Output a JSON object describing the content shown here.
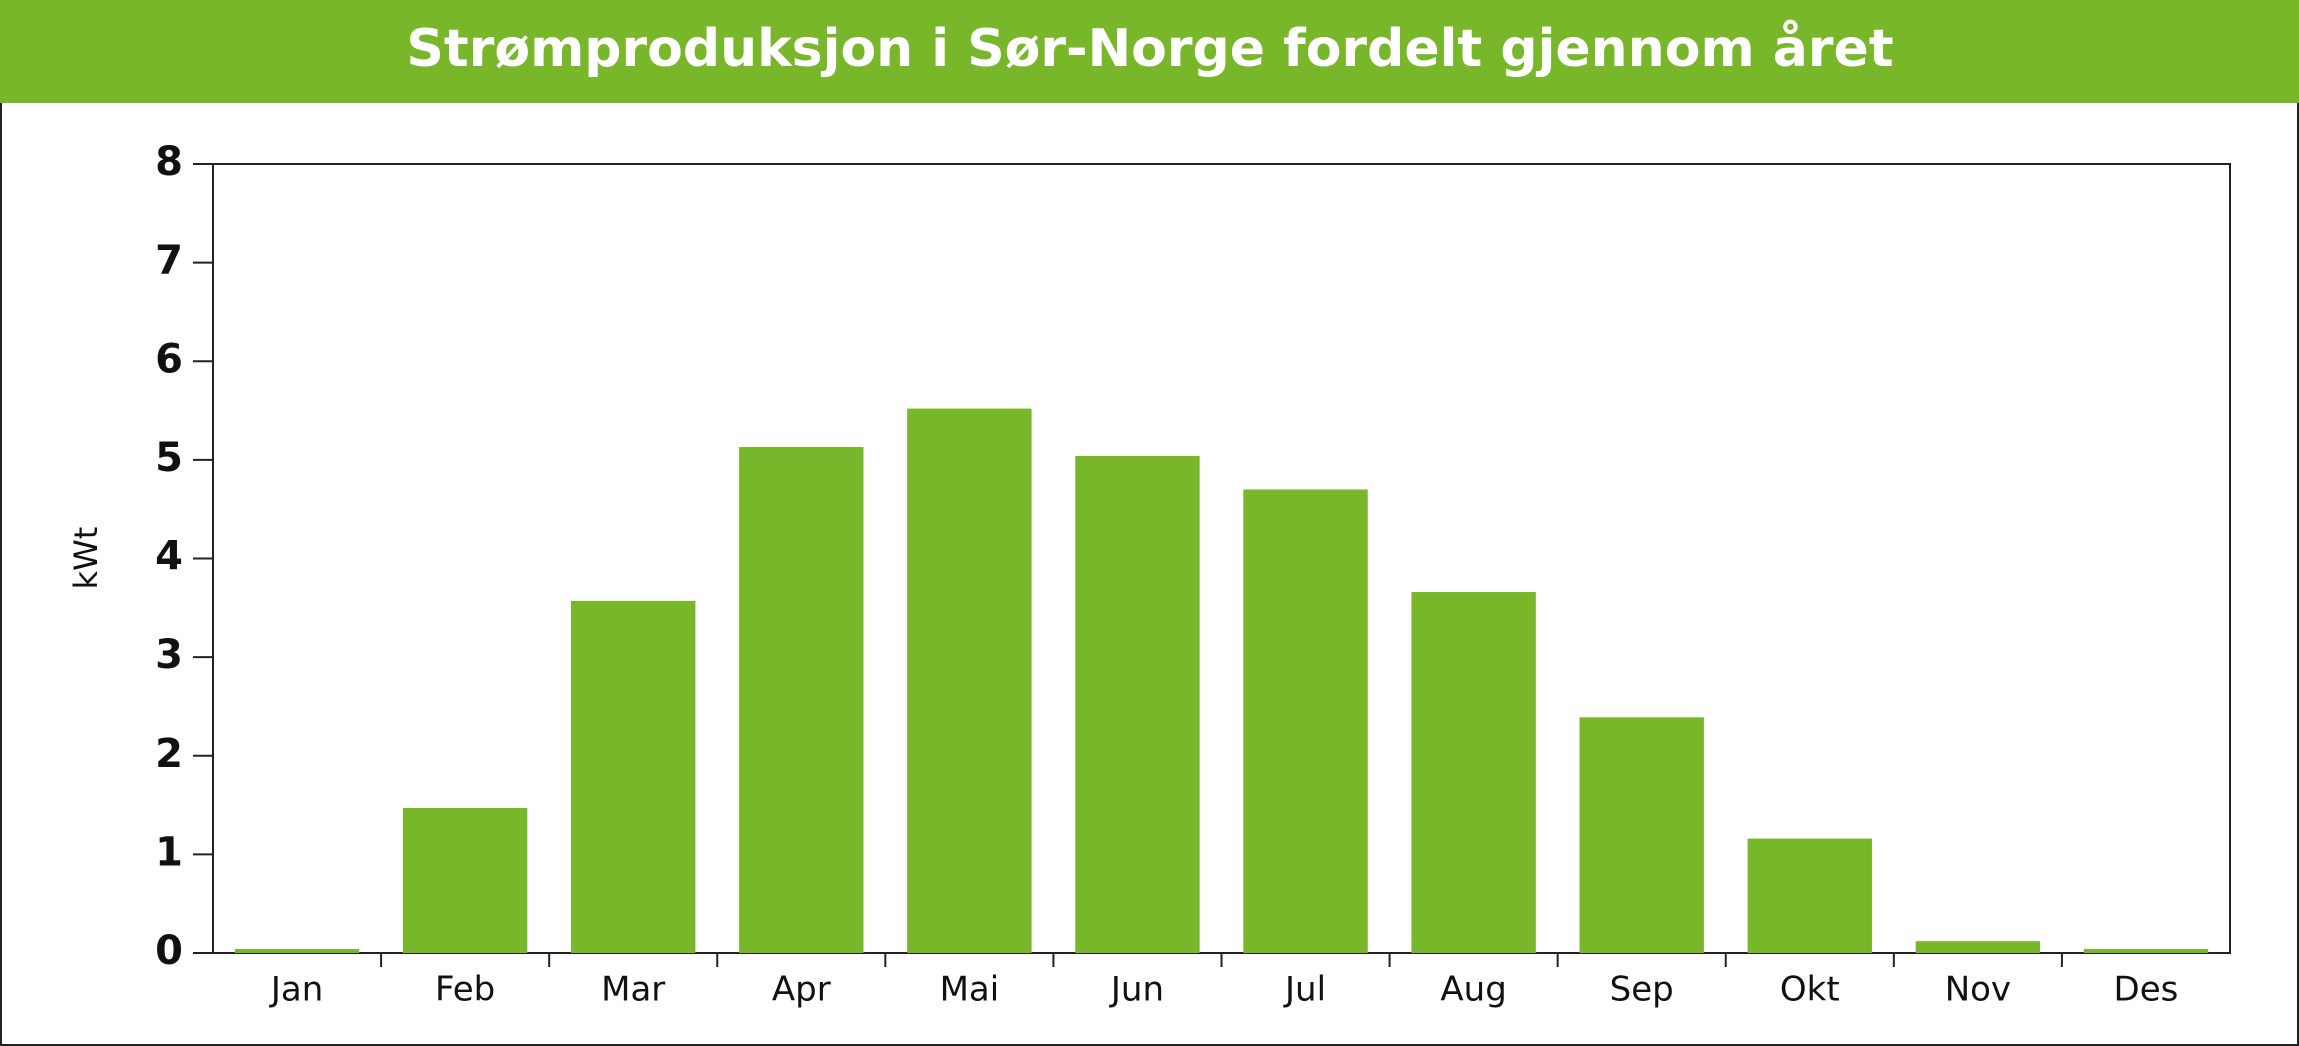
{
  "chart_data": {
    "type": "bar",
    "title": "Strømproduksjon i Sør-Norge fordelt gjennom året",
    "y_label": "kWt",
    "categories": [
      "Jan",
      "Feb",
      "Mar",
      "Apr",
      "Mai",
      "Jun",
      "Jul",
      "Aug",
      "Sep",
      "Okt",
      "Nov",
      "Des"
    ],
    "values": [
      0.04,
      1.47,
      3.57,
      5.13,
      5.52,
      5.04,
      4.7,
      3.66,
      2.39,
      1.16,
      0.12,
      0.04
    ],
    "color": "#78b72a",
    "ylim": [
      0,
      8
    ],
    "yticks": [
      0,
      1,
      2,
      3,
      4,
      5,
      6,
      7,
      8
    ],
    "grid": false
  }
}
